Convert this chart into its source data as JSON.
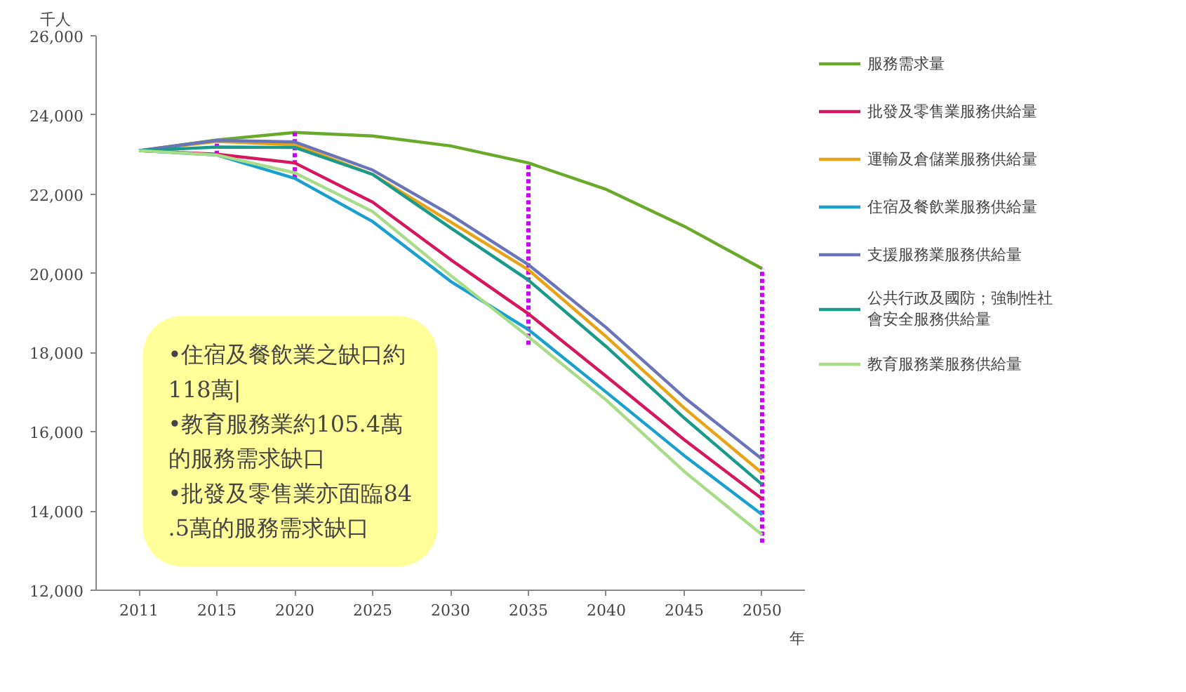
{
  "chart_data": {
    "type": "line",
    "ylabel": "千人",
    "xlabel": "年",
    "categories": [
      "2011",
      "2015",
      "2020",
      "2025",
      "2030",
      "2035",
      "2040",
      "2045",
      "2050"
    ],
    "ylim": [
      12000,
      26000
    ],
    "yticks": [
      {
        "value": 12000,
        "label": "12,000"
      },
      {
        "value": 14000,
        "label": "14,000"
      },
      {
        "value": 16000,
        "label": "16,000"
      },
      {
        "value": 18000,
        "label": "18,000"
      },
      {
        "value": 20000,
        "label": "20,000"
      },
      {
        "value": 22000,
        "label": "22,000"
      },
      {
        "value": 24000,
        "label": "24,000"
      },
      {
        "value": 26000,
        "label": "26,000"
      }
    ],
    "grid": false,
    "legend": "right",
    "marker": "none",
    "line_style": "solid",
    "series": [
      {
        "name": "服務需求量",
        "color": "#6aaa2a",
        "values": [
          23100,
          23370,
          23560,
          23470,
          23220,
          22790,
          22120,
          21190,
          20120
        ],
        "errors": [
          null,
          [
            22990,
            23370
          ],
          [
            22400,
            23560
          ],
          null,
          null,
          [
            18200,
            22790
          ],
          null,
          null,
          [
            13200,
            20120
          ]
        ]
      },
      {
        "name": "批發及零售業服務供給量",
        "color": "#d6165f",
        "values": [
          23100,
          23010,
          22790,
          21800,
          20350,
          18980,
          17400,
          15800,
          14310
        ]
      },
      {
        "name": "運輸及倉儲業服務供給量",
        "color": "#e8a317",
        "values": [
          23100,
          23330,
          23250,
          22500,
          21300,
          20090,
          18400,
          16600,
          14960
        ]
      },
      {
        "name": "住宿及餐飲業服務供給量",
        "color": "#1aa0cf",
        "values": [
          23100,
          22990,
          22400,
          21310,
          19800,
          18580,
          17000,
          15400,
          13910
        ]
      },
      {
        "name": "支援服務業服務供給量",
        "color": "#6a74b8",
        "values": [
          23100,
          23360,
          23320,
          22610,
          21480,
          20220,
          18630,
          16870,
          15310
        ]
      },
      {
        "name": "公共行政及國防；強制性社會安全服務供給量",
        "color": "#1a9a8a",
        "values": [
          23100,
          23190,
          23180,
          22500,
          21150,
          19830,
          18150,
          16350,
          14670
        ]
      },
      {
        "name": "教育服務業服務供給量",
        "color": "#a8dc88",
        "values": [
          23100,
          22990,
          22540,
          21560,
          19950,
          18400,
          16800,
          15000,
          13400
        ]
      }
    ],
    "annotations": [
      "•住宿及餐飲業之缺口約118萬|\n•教育服務業約105.4萬的服務需求缺口\n•批發及零售業亦面臨84.5萬的服務需求缺口"
    ]
  }
}
